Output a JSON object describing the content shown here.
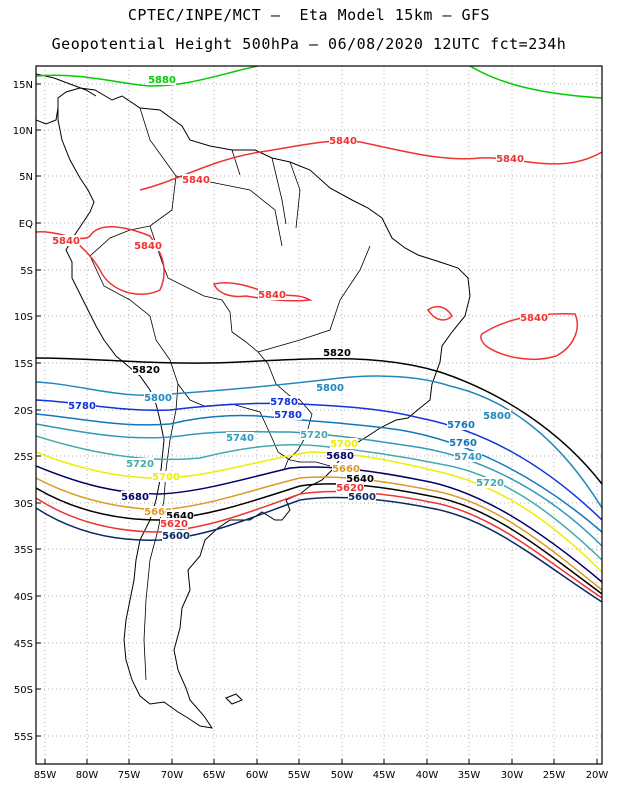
{
  "header": {
    "title_line1": "CPTEC/INPE/MCT –  Eta Model 15km – GFS",
    "title_line2": "Geopotential Height 500hPa – 06/08/2020 12UTC fct=234h"
  },
  "axes": {
    "lat_ticks": [
      "15N",
      "10N",
      "5N",
      "EQ",
      "5S",
      "10S",
      "15S",
      "20S",
      "25S",
      "30S",
      "35S",
      "40S",
      "45S",
      "50S",
      "55S"
    ],
    "lon_ticks": [
      "85W",
      "80W",
      "75W",
      "70W",
      "65W",
      "60W",
      "55W",
      "50W",
      "45W",
      "40W",
      "35W",
      "30W",
      "25W",
      "20W"
    ],
    "gridlines": "dotted"
  },
  "colors": {
    "5880": "#00cc00",
    "5840": "#ee3333",
    "5820": "#000000",
    "5800": "#2288bb",
    "5780": "#1133dd",
    "5760": "#1177bb",
    "5740": "#3399bb",
    "5720": "#44aaaa",
    "5700": "#eeee00",
    "5680": "#000066",
    "5660": "#dd9922",
    "5640": "#000000",
    "5620": "#ee3333",
    "5600": "#0a2a66"
  },
  "contour_labels": [
    {
      "text": "5880",
      "level": "5880"
    },
    {
      "text": "5840",
      "level": "5840"
    },
    {
      "text": "5840",
      "level": "5840"
    },
    {
      "text": "5840",
      "level": "5840"
    },
    {
      "text": "5840",
      "level": "5840"
    },
    {
      "text": "5840",
      "level": "5840"
    },
    {
      "text": "5840",
      "level": "5840"
    },
    {
      "text": "5840",
      "level": "5840"
    },
    {
      "text": "5820",
      "level": "5820"
    },
    {
      "text": "5820",
      "level": "5820"
    },
    {
      "text": "5800",
      "level": "5800"
    },
    {
      "text": "5800",
      "level": "5800"
    },
    {
      "text": "5800",
      "level": "5800"
    },
    {
      "text": "5780",
      "level": "5780"
    },
    {
      "text": "5780",
      "level": "5780"
    },
    {
      "text": "5760",
      "level": "5760"
    },
    {
      "text": "5780",
      "level": "5780"
    },
    {
      "text": "5760",
      "level": "5760"
    },
    {
      "text": "5740",
      "level": "5740"
    },
    {
      "text": "5720",
      "level": "5720"
    },
    {
      "text": "5740",
      "level": "5740"
    },
    {
      "text": "5720",
      "level": "5720"
    },
    {
      "text": "5720",
      "level": "5720"
    },
    {
      "text": "5700",
      "level": "5700"
    },
    {
      "text": "5700",
      "level": "5700"
    },
    {
      "text": "5680",
      "level": "5680"
    },
    {
      "text": "5680",
      "level": "5680"
    },
    {
      "text": "5660",
      "level": "5660"
    },
    {
      "text": "5660",
      "level": "5660"
    },
    {
      "text": "5640",
      "level": "5640"
    },
    {
      "text": "5640",
      "level": "5640"
    },
    {
      "text": "5620",
      "level": "5620"
    },
    {
      "text": "5620",
      "level": "5620"
    },
    {
      "text": "5600",
      "level": "5600"
    },
    {
      "text": "5600",
      "level": "5600"
    }
  ]
}
